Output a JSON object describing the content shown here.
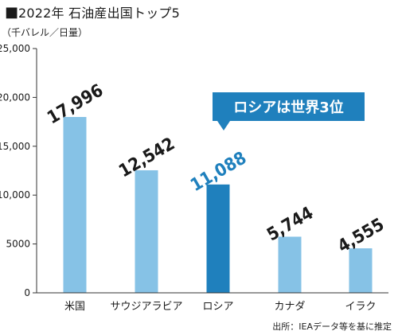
{
  "header": {
    "square": "■",
    "title": "2022年 石油産出国トップ5"
  },
  "unit_label": "（千バレル／日量）",
  "source_note": "出所：IEAデータ等を基に推定",
  "callout": {
    "text": "ロシアは世界3位",
    "color": "#1f80bd"
  },
  "colors": {
    "bar": "#86c2e6",
    "highlight": "#1f80bd",
    "axis": "#333333"
  },
  "chart_data": {
    "type": "bar",
    "title": "2022年 石油産出国トップ5",
    "xlabel": "",
    "ylabel": "千バレル／日量",
    "categories": [
      "米国",
      "サウジアラビア",
      "ロシア",
      "カナダ",
      "イラク"
    ],
    "values": [
      17996,
      12542,
      11088,
      5744,
      4555
    ],
    "value_labels": [
      "17,996",
      "12,542",
      "11,088",
      "5,744",
      "4,555"
    ],
    "highlight_index": 2,
    "ylim": [
      0,
      25000
    ],
    "yticks": [
      0,
      5000,
      10000,
      15000,
      20000,
      25000
    ],
    "ytick_labels": [
      "0",
      "5000",
      "10,000",
      "15,000",
      "20,000",
      "25,000"
    ],
    "grid": false,
    "legend": "none"
  }
}
